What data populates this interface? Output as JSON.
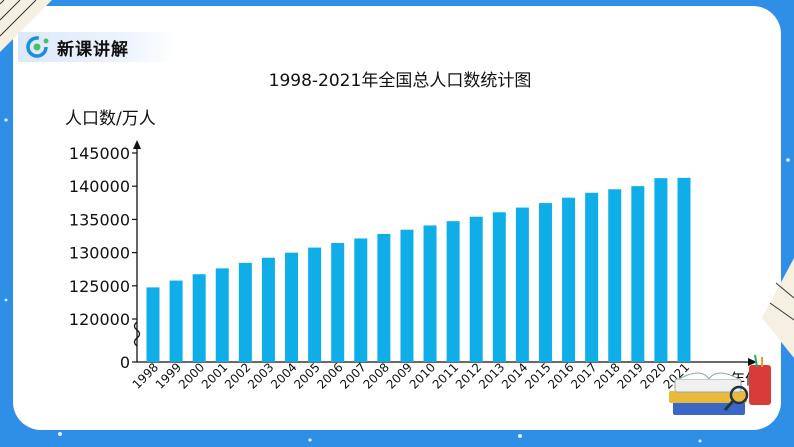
{
  "header": {
    "badge_label": "新课讲解",
    "logo_icon": "logo-icon"
  },
  "colors": {
    "bar": "#10aee9",
    "background": "#2f8fe6",
    "panel": "#ffffff"
  },
  "chart_data": {
    "type": "bar",
    "title": "1998-2021年全国总人口数统计图",
    "ylabel": "人口数/万人",
    "xlabel": "年份",
    "categories": [
      "1998",
      "1999",
      "2000",
      "2001",
      "2002",
      "2003",
      "2004",
      "2005",
      "2006",
      "2007",
      "2008",
      "2009",
      "2010",
      "2011",
      "2012",
      "2013",
      "2014",
      "2015",
      "2016",
      "2017",
      "2018",
      "2019",
      "2020",
      "2021"
    ],
    "values": [
      124761,
      125786,
      126743,
      127627,
      128453,
      129227,
      129988,
      130756,
      131448,
      132129,
      132802,
      133450,
      134091,
      134735,
      135404,
      136072,
      136782,
      137462,
      138271,
      139008,
      139538,
      140005,
      141212,
      141260
    ],
    "y_ticks": [
      0,
      120000,
      125000,
      130000,
      135000,
      140000,
      145000
    ],
    "y_tick_labels": [
      "0",
      "120000",
      "125000",
      "130000",
      "135000",
      "140000",
      "145000"
    ],
    "ylim_broken": [
      120000,
      145000
    ],
    "grid": false,
    "legend": "none"
  }
}
